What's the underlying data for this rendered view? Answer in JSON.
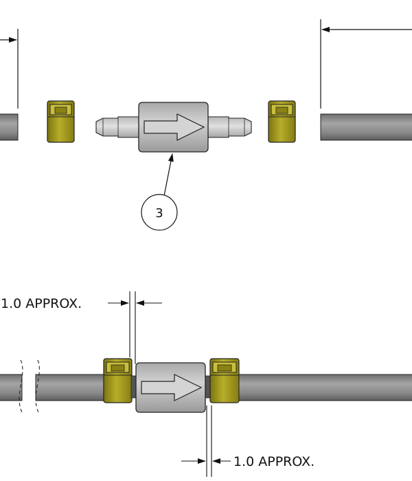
{
  "drawing": {
    "balloon_number": "3",
    "dimension_top_gap": "1.0 APPROX.",
    "dimension_bottom_gap": "1.0 APPROX."
  },
  "colors": {
    "tube": "#8f8f8f",
    "valve_body": "#b9b9b9",
    "barb": "#c4c4c4",
    "clamp": "#a39a1a",
    "line": "#111111"
  },
  "icons": {
    "flow_arrow": "right-arrow",
    "break_symbol": "break-lines"
  }
}
